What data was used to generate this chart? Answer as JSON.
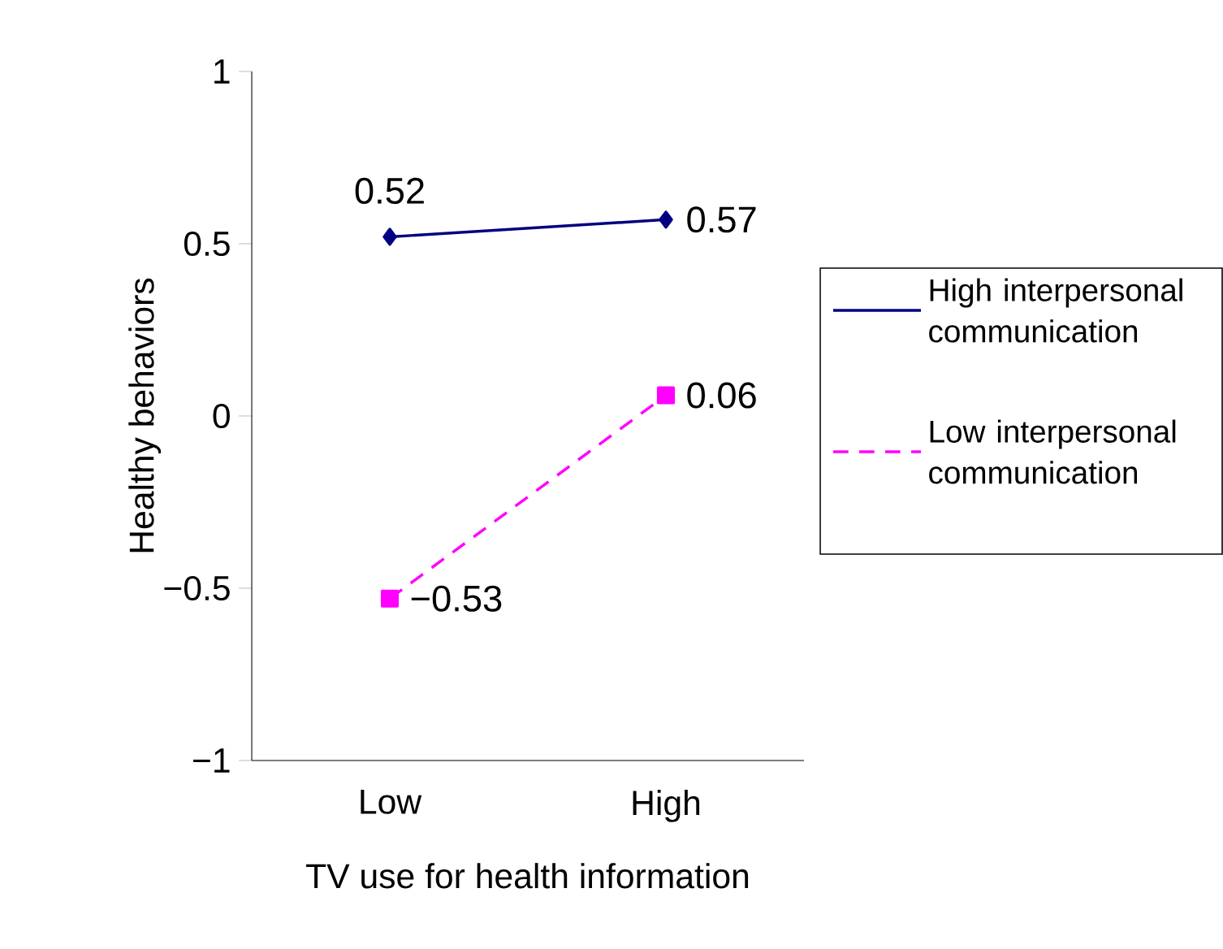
{
  "chart_data": {
    "type": "line",
    "xlabel": "TV use for health information",
    "ylabel": "Healthy behaviors",
    "categories": [
      "Low",
      "High"
    ],
    "series": [
      {
        "name": "High interpersonal communication",
        "color": "#000080",
        "values": [
          0.52,
          0.57
        ],
        "value_labels": [
          "0.52",
          "0.57"
        ],
        "marker": "diamond",
        "line_style": "solid"
      },
      {
        "name": "Low interpersonal communication",
        "color": "#ff00ff",
        "values": [
          -0.53,
          0.06
        ],
        "value_labels": [
          "−0.53",
          "0.06"
        ],
        "marker": "square",
        "line_style": "dashed"
      }
    ],
    "ylim": [
      -1,
      1
    ],
    "yticks": [
      {
        "value": -1,
        "label": "−1"
      },
      {
        "value": -0.5,
        "label": "−0.5"
      },
      0,
      0.5,
      1
    ],
    "grid": false,
    "legend": "right"
  }
}
